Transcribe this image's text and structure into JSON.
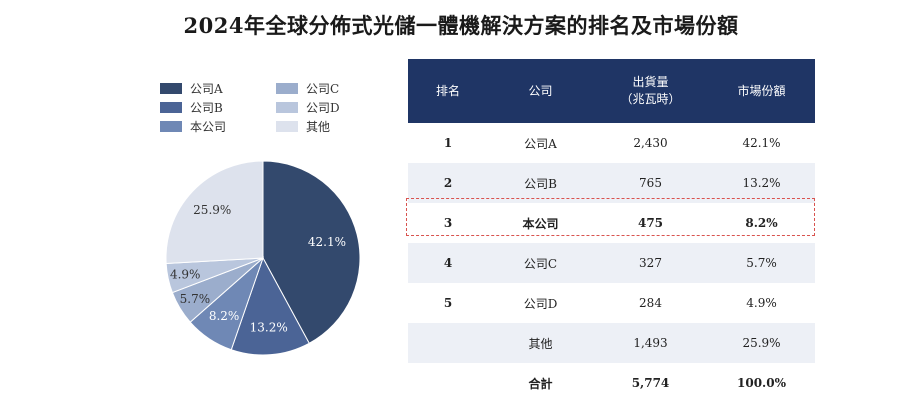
{
  "title": "2024年全球分佈式光儲一體機解決方案的排名及市場份額",
  "chart_data": {
    "type": "pie",
    "title": "2024年全球分佈式光儲一體機解決方案的排名及市場份額",
    "legend_placement": "top",
    "slices": [
      {
        "label": "公司A",
        "value": 42.1,
        "value_label": "42.1%",
        "color": "#33496d"
      },
      {
        "label": "公司B",
        "value": 13.2,
        "value_label": "13.2%",
        "color": "#4b6496"
      },
      {
        "label": "本公司",
        "value": 8.2,
        "value_label": "8.2%",
        "color": "#6f88b5"
      },
      {
        "label": "公司C",
        "value": 5.7,
        "value_label": "5.7%",
        "color": "#9badcc"
      },
      {
        "label": "公司D",
        "value": 4.9,
        "value_label": "4.9%",
        "color": "#b9c6dd"
      },
      {
        "label": "其他",
        "value": 25.9,
        "value_label": "25.9%",
        "color": "#dde2ed"
      }
    ]
  },
  "legend": {
    "items": [
      {
        "label": "公司A",
        "color": "#33496d"
      },
      {
        "label": "公司B",
        "color": "#4b6496"
      },
      {
        "label": "本公司",
        "color": "#6f88b5"
      },
      {
        "label": "公司C",
        "color": "#9badcc"
      },
      {
        "label": "公司D",
        "color": "#b9c6dd"
      },
      {
        "label": "其他",
        "color": "#dde2ed"
      }
    ]
  },
  "table": {
    "headers": {
      "rank": "排名",
      "company": "公司",
      "shipment_line1": "出貨量",
      "shipment_line2": "（兆瓦時）",
      "share": "市場份額"
    },
    "rows": [
      {
        "rank": "1",
        "company": "公司A",
        "shipment": "2,430",
        "share": "42.1%"
      },
      {
        "rank": "2",
        "company": "公司B",
        "shipment": "765",
        "share": "13.2%"
      },
      {
        "rank": "3",
        "company": "本公司",
        "shipment": "475",
        "share": "8.2%"
      },
      {
        "rank": "4",
        "company": "公司C",
        "shipment": "327",
        "share": "5.7%"
      },
      {
        "rank": "5",
        "company": "公司D",
        "shipment": "284",
        "share": "4.9%"
      },
      {
        "rank": "",
        "company": "其他",
        "shipment": "1,493",
        "share": "25.9%"
      },
      {
        "rank": "",
        "company": "合計",
        "shipment": "5,774",
        "share": "100.0%"
      }
    ],
    "highlight_color": "#d9534f",
    "header_color": "#1f3565"
  }
}
